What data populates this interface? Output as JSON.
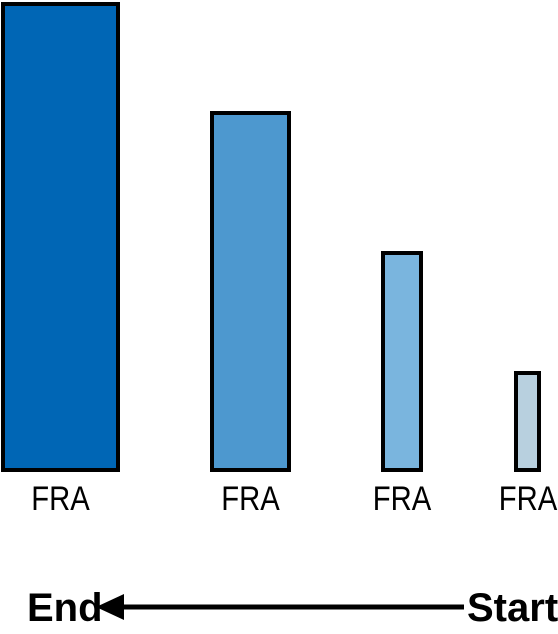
{
  "bars": [
    {
      "label": "FRA",
      "color": "#0066b5",
      "level": 1.0
    },
    {
      "label": "FRA",
      "color": "#4d98cf",
      "level": 0.764
    },
    {
      "label": "FRA",
      "color": "#7ab5de",
      "level": 0.465
    },
    {
      "label": "FRA",
      "color": "#b8d0df",
      "level": 0.21
    }
  ],
  "timeline": {
    "end_label": "End",
    "start_label": "Start",
    "direction": "right-to-left"
  }
}
